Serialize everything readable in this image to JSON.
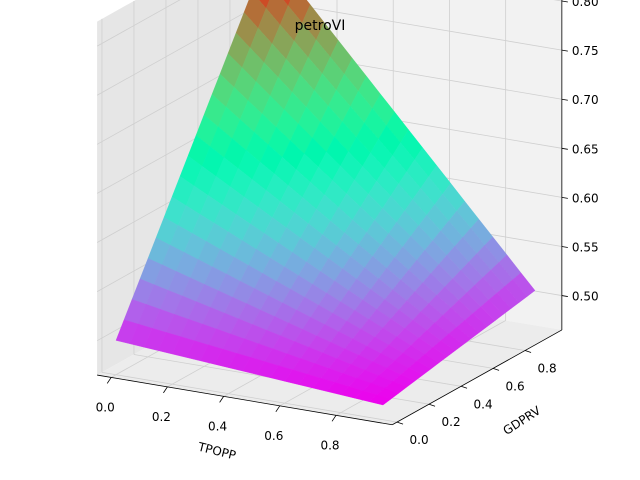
{
  "chart_data": {
    "type": "surface3d",
    "title": "petroVI",
    "xlabel": "TPOPP",
    "ylabel": "GDPRV",
    "zlabel": "",
    "xlim": [
      0,
      0.95
    ],
    "ylim": [
      0,
      0.95
    ],
    "zlim": [
      0.48,
      0.81
    ],
    "x_ticks": [
      0.0,
      0.2,
      0.4,
      0.6,
      0.8
    ],
    "y_ticks": [
      0.0,
      0.2,
      0.4,
      0.6,
      0.8
    ],
    "z_ticks": [
      0.5,
      0.55,
      0.6,
      0.65,
      0.7,
      0.75,
      0.8
    ],
    "x_tick_labels": [
      "0.0",
      "0.2",
      "0.4",
      "0.6",
      "0.8"
    ],
    "y_tick_labels": [
      "0.0",
      "0.2",
      "0.4",
      "0.6",
      "0.8"
    ],
    "z_tick_labels": [
      "0.50",
      "0.55",
      "0.60",
      "0.65",
      "0.70",
      "0.75",
      "0.80"
    ],
    "colormap": "rainbow",
    "grid": true,
    "grid_points": [
      0.0,
      0.05,
      0.1,
      0.15,
      0.2,
      0.25,
      0.3,
      0.35,
      0.4,
      0.45,
      0.5,
      0.55,
      0.6,
      0.65,
      0.7,
      0.75,
      0.8,
      0.85,
      0.9,
      0.95
    ],
    "corners": [
      {
        "TPOPP": 0.0,
        "GDPRV": 0.0,
        "value": 0.5
      },
      {
        "TPOPP": 0.95,
        "GDPRV": 0.0,
        "value": 0.48
      },
      {
        "TPOPP": 0.0,
        "GDPRV": 0.95,
        "value": 0.81
      },
      {
        "TPOPP": 0.95,
        "GDPRV": 0.95,
        "value": 0.51
      }
    ]
  }
}
